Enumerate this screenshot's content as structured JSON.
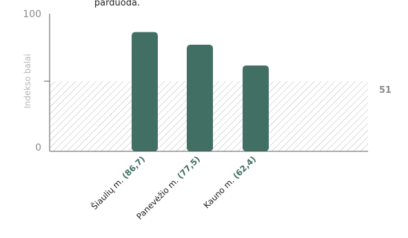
{
  "title_fragment": "parduoda.",
  "chart_data": {
    "type": "bar",
    "ylabel": "Indekso balai",
    "ylim": [
      0,
      100
    ],
    "y_tick_labels": [
      "0",
      "100"
    ],
    "categories": [
      "Šiaulių m.",
      "Panevėžio m.",
      "Kauno m."
    ],
    "value_labels": [
      "(86,7)",
      "(77,5)",
      "(62,4)"
    ],
    "values": [
      86.7,
      77.5,
      62.4
    ],
    "reference_band": {
      "from": 0,
      "to": 51,
      "label": "51",
      "pattern": "diagonal-hatch"
    },
    "bar_color": "#426f64",
    "value_label_color": "#426f64",
    "hatch_color": "#b4b4b4",
    "axis_color": "#555555",
    "grid": false
  }
}
